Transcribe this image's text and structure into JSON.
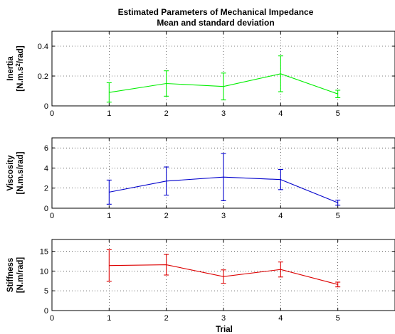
{
  "figure": {
    "title_line1": "Estimated Parameters of Mechanical Impedance",
    "title_line2": "Mean and standard deviation",
    "xlabel": "Trial"
  },
  "chart_data": [
    {
      "type": "line",
      "ylabel_line1": "Inertia",
      "ylabel_line2_pre": "[N.m.s",
      "ylabel_line2_sup": "2",
      "ylabel_line2_post": "/rad]",
      "color": "#00ee00",
      "x": [
        1,
        2,
        3,
        4,
        5
      ],
      "mean": [
        0.09,
        0.15,
        0.13,
        0.215,
        0.08
      ],
      "std": [
        0.065,
        0.085,
        0.09,
        0.12,
        0.025
      ],
      "xlim": [
        0,
        6
      ],
      "ylim": [
        0,
        0.5
      ],
      "xticks": [
        "0",
        "1",
        "2",
        "3",
        "4",
        "5",
        "6"
      ],
      "xticks_values": [
        0,
        1,
        2,
        3,
        4,
        5,
        6
      ],
      "yticks": [
        "0",
        "0.2",
        "0.4"
      ],
      "yticks_values": [
        0,
        0.2,
        0.4
      ],
      "grid": true
    },
    {
      "type": "line",
      "ylabel_line1": "Viscosity",
      "ylabel_line2_pre": "[N.m.s/rad]",
      "ylabel_line2_sup": "",
      "ylabel_line2_post": "",
      "color": "#0000cc",
      "x": [
        1,
        2,
        3,
        4,
        5
      ],
      "mean": [
        1.6,
        2.7,
        3.1,
        2.85,
        0.55
      ],
      "std": [
        1.2,
        1.4,
        2.35,
        1.0,
        0.25
      ],
      "xlim": [
        0,
        6
      ],
      "ylim": [
        0,
        7
      ],
      "xticks": [
        "0",
        "1",
        "2",
        "3",
        "4",
        "5",
        "6"
      ],
      "xticks_values": [
        0,
        1,
        2,
        3,
        4,
        5,
        6
      ],
      "yticks": [
        "0",
        "2",
        "4",
        "6"
      ],
      "yticks_values": [
        0,
        2,
        4,
        6
      ],
      "grid": true
    },
    {
      "type": "line",
      "ylabel_line1": "Stiffness",
      "ylabel_line2_pre": "[N.m/rad]",
      "ylabel_line2_sup": "",
      "ylabel_line2_post": "",
      "color": "#dd0000",
      "x": [
        1,
        2,
        3,
        4,
        5
      ],
      "mean": [
        11.4,
        11.6,
        8.6,
        10.4,
        6.6
      ],
      "std": [
        4.0,
        2.6,
        1.7,
        1.9,
        0.6
      ],
      "xlim": [
        0,
        6
      ],
      "ylim": [
        0,
        18
      ],
      "xticks": [
        "0",
        "1",
        "2",
        "3",
        "4",
        "5",
        "6"
      ],
      "xticks_values": [
        0,
        1,
        2,
        3,
        4,
        5,
        6
      ],
      "yticks": [
        "0",
        "5",
        "10",
        "15"
      ],
      "yticks_values": [
        0,
        5,
        10,
        15
      ],
      "grid": true
    }
  ]
}
